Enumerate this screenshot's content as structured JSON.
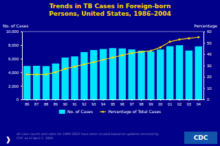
{
  "chart_data": {
    "type": "bar",
    "title": "Trends in TB Cases in Foreign-born\nPersons, United States, 1986–2004",
    "categories": [
      "86",
      "87",
      "88",
      "89",
      "90",
      "91",
      "92",
      "93",
      "94",
      "95",
      "96",
      "97",
      "98",
      "99",
      "00",
      "01",
      "02",
      "03",
      "04"
    ],
    "series": [
      {
        "name": "No. of Cases",
        "type": "bar",
        "color": "#00E5FF",
        "values": [
          4925,
          4952,
          4907,
          5290,
          6166,
          6338,
          6972,
          7273,
          7424,
          7554,
          7509,
          7361,
          7178,
          7059,
          7354,
          7837,
          7981,
          7197,
          7812
        ]
      },
      {
        "name": "Percentage of Total Cases",
        "type": "line",
        "axis": "y2",
        "color": "#FFD700",
        "marker": "circle",
        "values": [
          22,
          22,
          22,
          24,
          27,
          29,
          31,
          33,
          35,
          37,
          39,
          41,
          42,
          43,
          46,
          51,
          53,
          54,
          55
        ]
      }
    ],
    "ylabel": "No. of Cases",
    "y2label": "Percentage",
    "ylim": [
      0,
      10000
    ],
    "yticks": [
      0,
      {
        "value": 2000,
        "label": "2,000"
      },
      {
        "value": 4000,
        "label": "4,000"
      },
      {
        "value": 6000,
        "label": "6,000"
      },
      {
        "value": 8000,
        "label": "8,000"
      },
      {
        "value": 10000,
        "label": "10,000"
      }
    ],
    "y2lim": [
      0,
      60
    ],
    "y2ticks": [
      0,
      10,
      20,
      30,
      40,
      50,
      60
    ],
    "grid": false,
    "legend": "bottom",
    "annotations": [
      "All case counts and rates for 1993-2003 have been revised based on updates received by\nCDC as of April 1, 2005",
      "CDC",
      "❱"
    ]
  }
}
